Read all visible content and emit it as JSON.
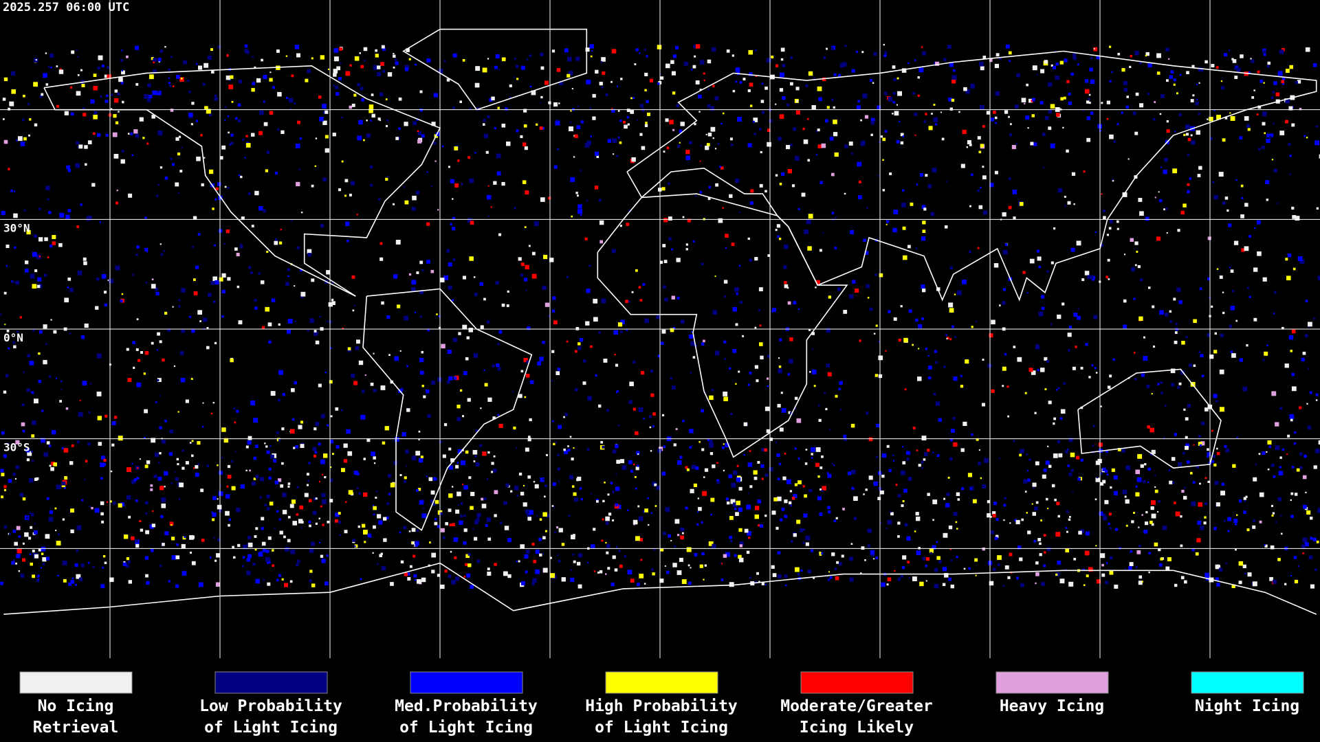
{
  "timestamp": "2025.257 06:00 UTC",
  "latitude_labels": [
    "30°N",
    "0°N",
    "30°S"
  ],
  "legend": [
    {
      "label": [
        "No Icing",
        "Retrieval"
      ],
      "color": "#f0f0f0"
    },
    {
      "label": [
        "Low Probability",
        "of Light Icing"
      ],
      "color": "#000080"
    },
    {
      "label": [
        "Med.Probability",
        "of Light Icing"
      ],
      "color": "#0000ff"
    },
    {
      "label": [
        "High Probability",
        "of Light Icing"
      ],
      "color": "#ffff00"
    },
    {
      "label": [
        "Moderate/Greater",
        "Icing Likely"
      ],
      "color": "#ff0000"
    },
    {
      "label": [
        "Heavy Icing"
      ],
      "color": "#e0a0e0"
    },
    {
      "label": [
        "Night Icing"
      ],
      "color": "#00ffff"
    }
  ]
}
